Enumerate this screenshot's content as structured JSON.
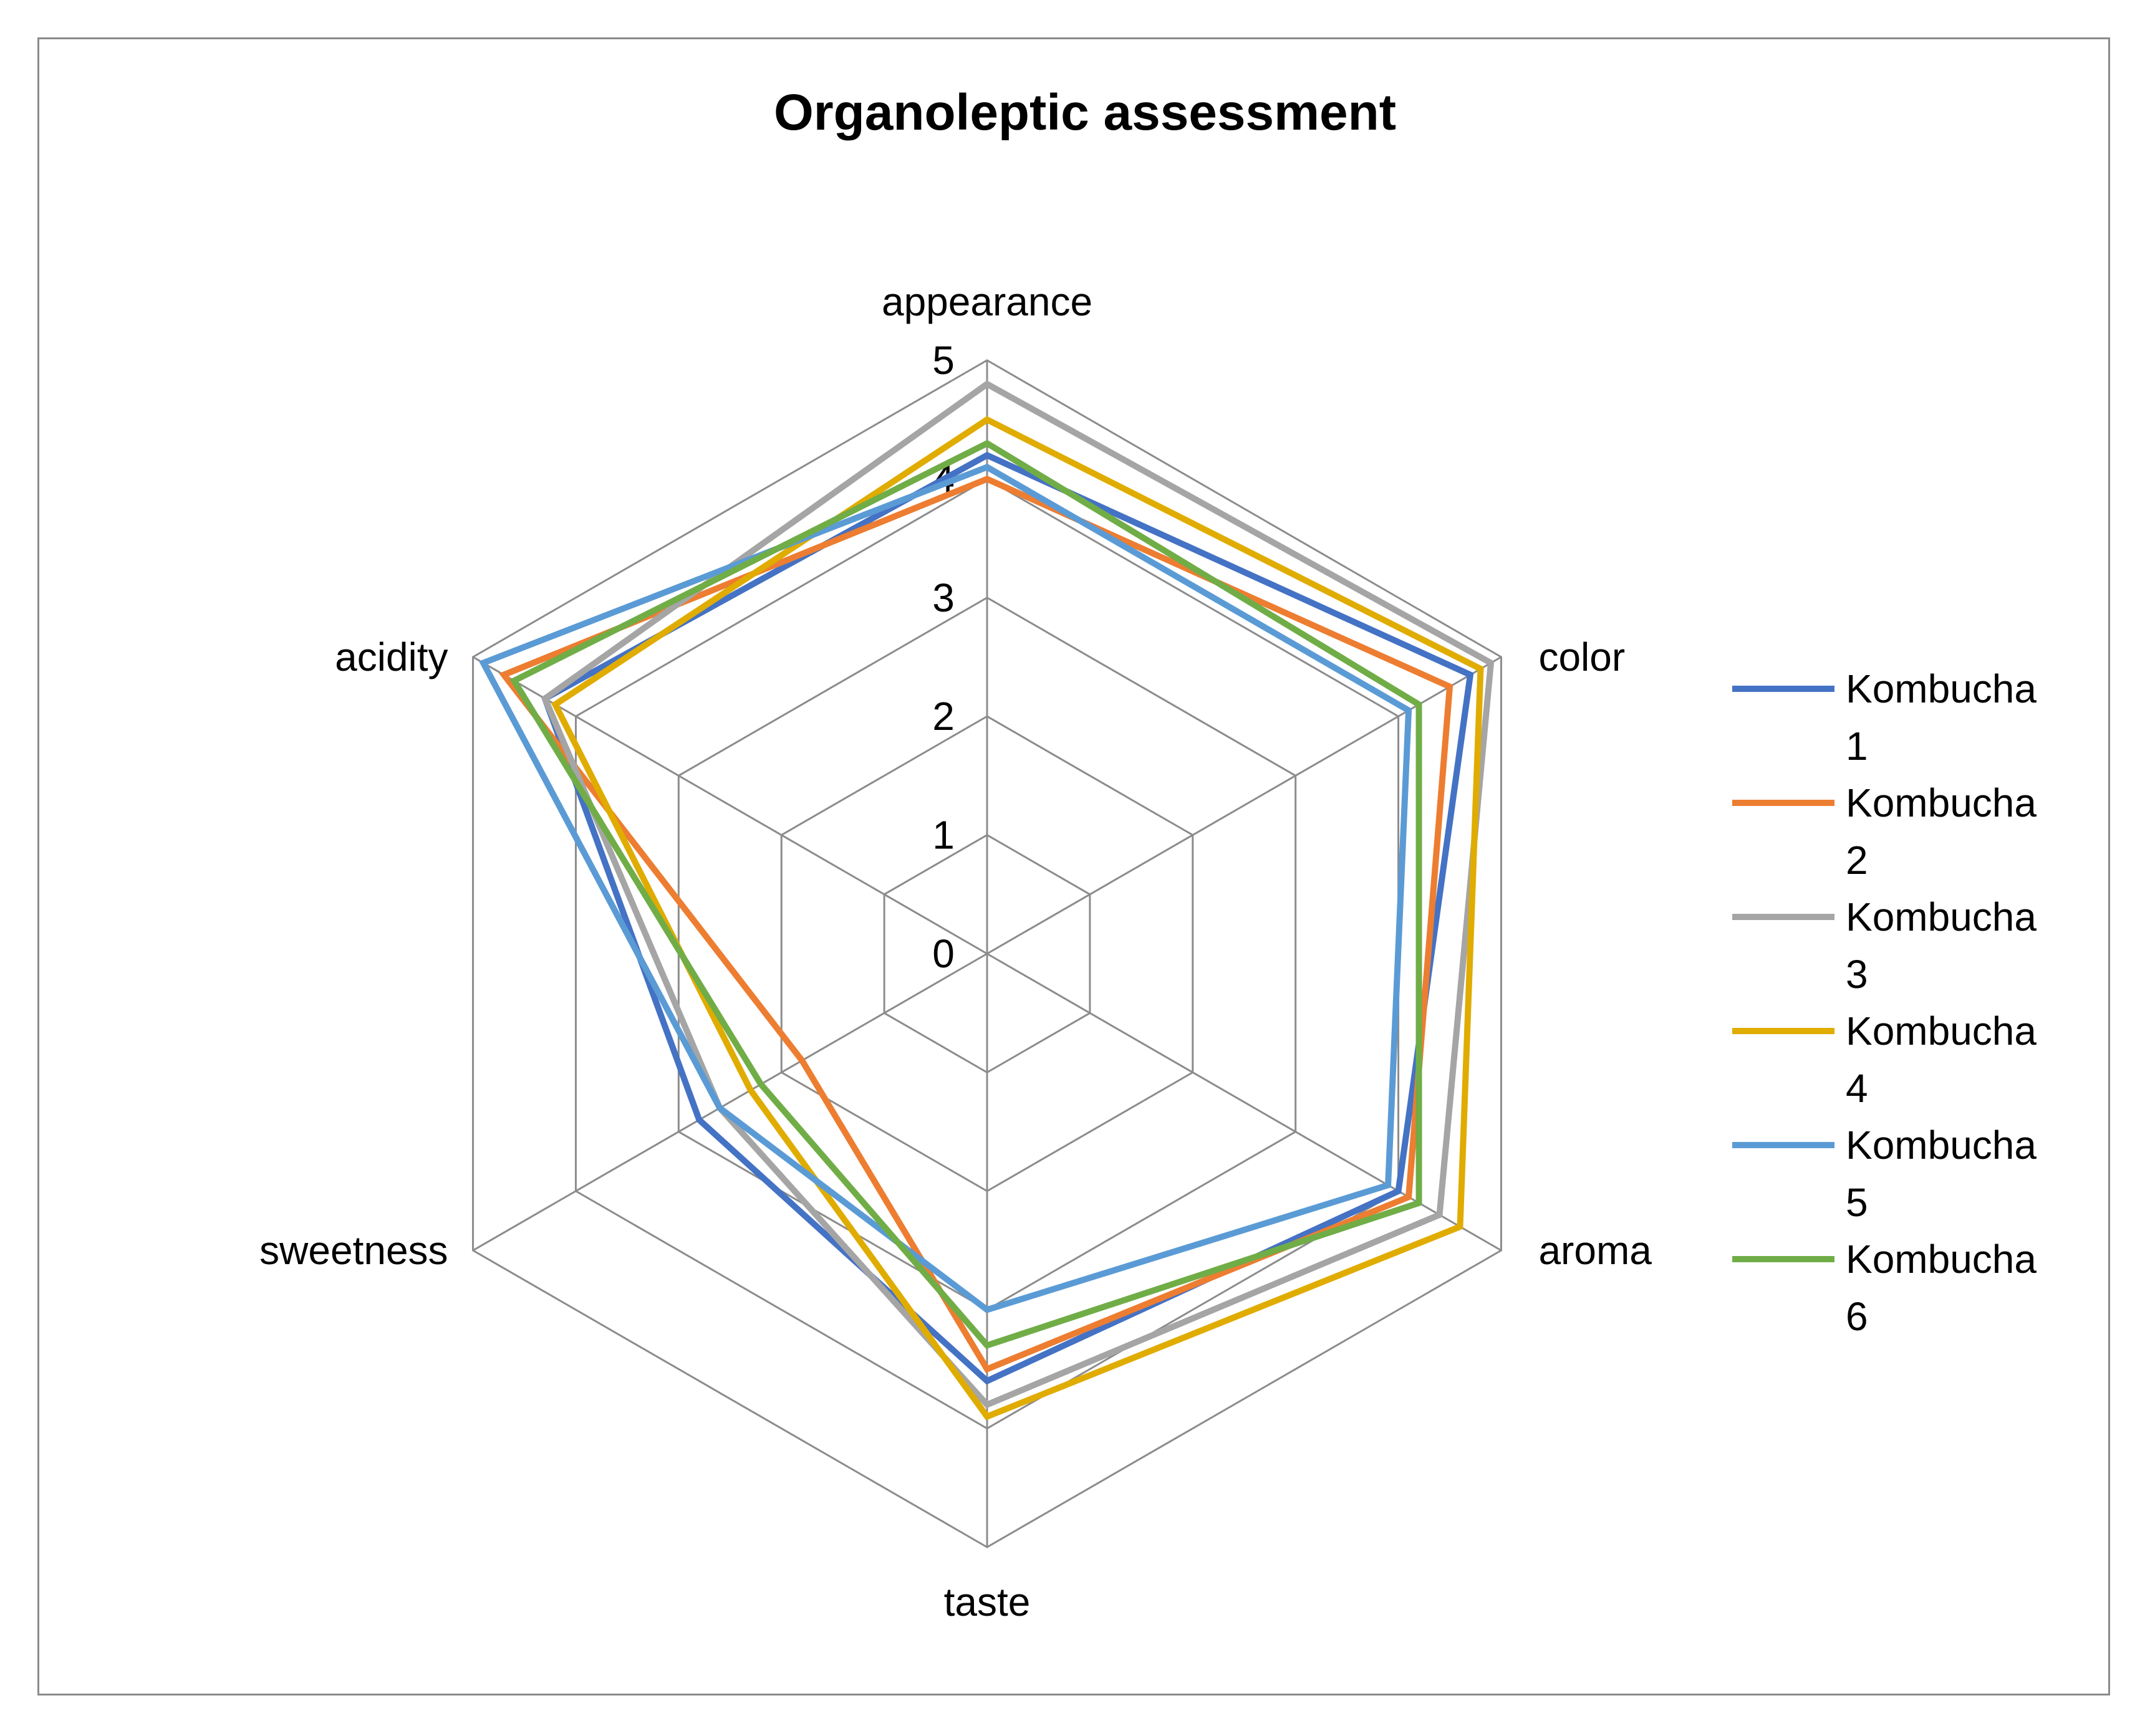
{
  "chart_data": {
    "type": "radar",
    "title": "Organoleptic assessment",
    "axes": [
      "appearance",
      "color",
      "aroma",
      "taste",
      "sweetness",
      "acidity"
    ],
    "rlim": [
      0,
      5
    ],
    "ticks": [
      "0",
      "1",
      "2",
      "3",
      "4",
      "5"
    ],
    "grid": true,
    "legend_position": "right",
    "series": [
      {
        "name": "Kombucha 1",
        "color": "#4472C4",
        "values": [
          4.2,
          4.7,
          4.0,
          3.6,
          2.8,
          4.3
        ]
      },
      {
        "name": "Kombucha 2",
        "color": "#ED7D31",
        "values": [
          4.0,
          4.5,
          4.1,
          3.5,
          1.8,
          4.7
        ]
      },
      {
        "name": "Kombucha 3",
        "color": "#A5A5A5",
        "values": [
          4.8,
          4.9,
          4.4,
          3.8,
          2.6,
          4.3
        ]
      },
      {
        "name": "Kombucha 4",
        "color": "#E0AC00",
        "values": [
          4.5,
          4.8,
          4.6,
          3.9,
          2.3,
          4.2
        ]
      },
      {
        "name": "Kombucha 5",
        "color": "#5B9BD5",
        "values": [
          4.1,
          4.1,
          3.9,
          3.0,
          2.6,
          4.9
        ]
      },
      {
        "name": "Kombucha 6",
        "color": "#70AD47",
        "values": [
          4.3,
          4.2,
          4.2,
          3.3,
          2.2,
          4.6
        ]
      }
    ]
  }
}
